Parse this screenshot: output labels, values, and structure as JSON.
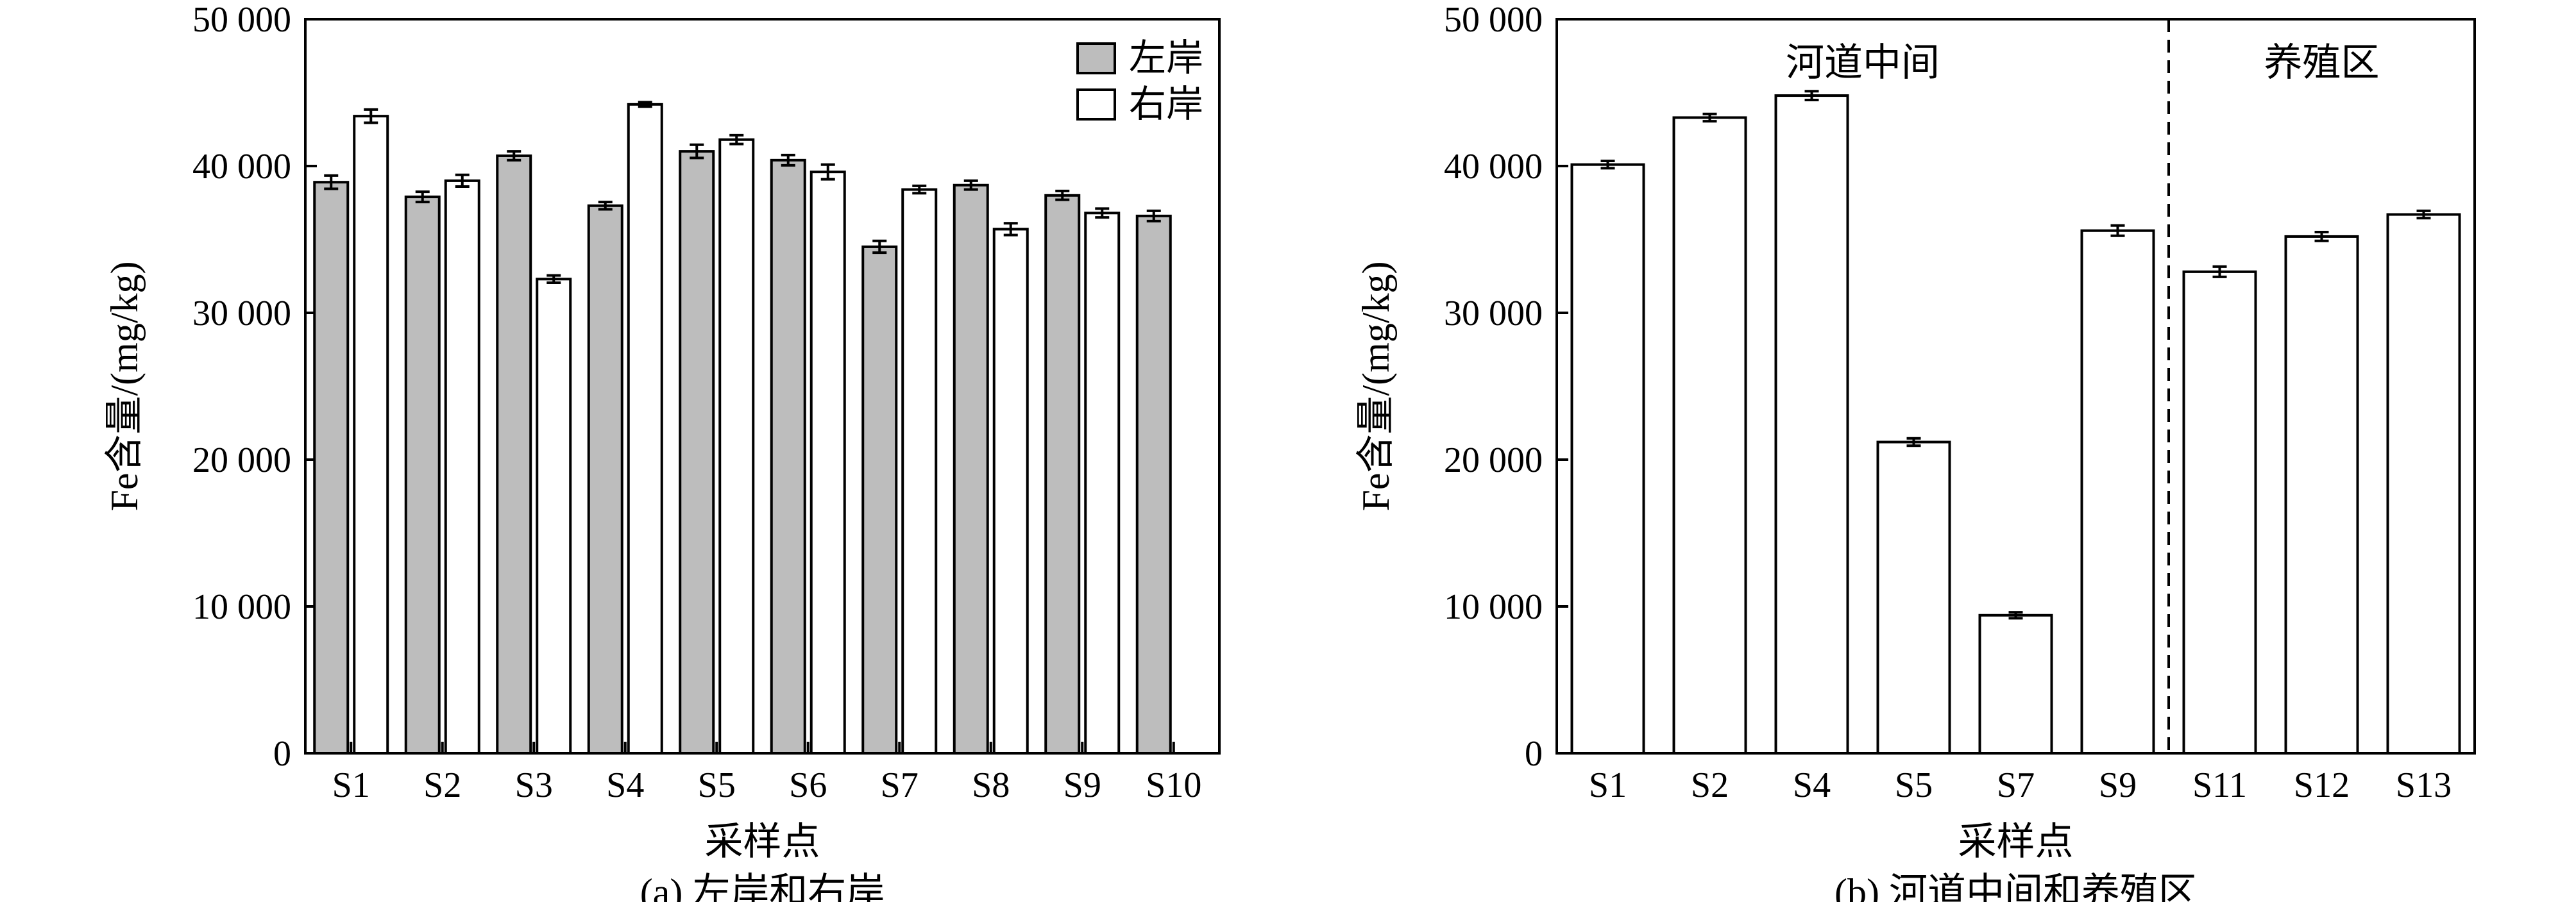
{
  "chart_data": [
    {
      "type": "bar",
      "caption": "(a) 左岸和右岸",
      "xlabel": "采样点",
      "ylabel": "Fe含量/(mg/kg)",
      "ylim": [
        0,
        50000
      ],
      "yticks": [
        "0",
        "10 000",
        "20 000",
        "30 000",
        "40 000",
        "50 000"
      ],
      "ytick_values": [
        0,
        10000,
        20000,
        30000,
        40000,
        50000
      ],
      "categories": [
        "S1",
        "S2",
        "S3",
        "S4",
        "S5",
        "S6",
        "S7",
        "S8",
        "S9",
        "S10"
      ],
      "series": [
        {
          "name": "左岸",
          "color": "#bdbdbd",
          "values": [
            38900,
            37900,
            40700,
            37300,
            41000,
            40400,
            34500,
            38700,
            38000,
            36600
          ],
          "errors": [
            450,
            350,
            300,
            250,
            450,
            350,
            400,
            300,
            300,
            350
          ]
        },
        {
          "name": "右岸",
          "color": "#ffffff",
          "values": [
            43400,
            39000,
            32300,
            44200,
            41800,
            39600,
            38400,
            35700,
            36800,
            null
          ],
          "errors": [
            450,
            400,
            250,
            150,
            300,
            500,
            250,
            400,
            300,
            null
          ]
        }
      ],
      "legend": "top-right"
    },
    {
      "type": "bar",
      "caption": "(b) 河道中间和养殖区",
      "xlabel": "采样点",
      "ylabel": "Fe含量/(mg/kg)",
      "ylim": [
        0,
        50000
      ],
      "yticks": [
        "0",
        "10 000",
        "20 000",
        "30 000",
        "40 000",
        "50 000"
      ],
      "ytick_values": [
        0,
        10000,
        20000,
        30000,
        40000,
        50000
      ],
      "categories": [
        "S1",
        "S2",
        "S4",
        "S5",
        "S7",
        "S9",
        "S11",
        "S12",
        "S13"
      ],
      "series": [
        {
          "color": "#ffffff",
          "values": [
            40100,
            43300,
            44800,
            21200,
            9400,
            35600,
            32800,
            35200,
            36700
          ],
          "errors": [
            250,
            250,
            300,
            250,
            200,
            350,
            350,
            300,
            250
          ]
        }
      ],
      "regions": [
        {
          "label": "河道中间",
          "from": 0,
          "to": 5
        },
        {
          "label": "养殖区",
          "from": 6,
          "to": 8
        }
      ],
      "divider_after_index": 5
    }
  ]
}
